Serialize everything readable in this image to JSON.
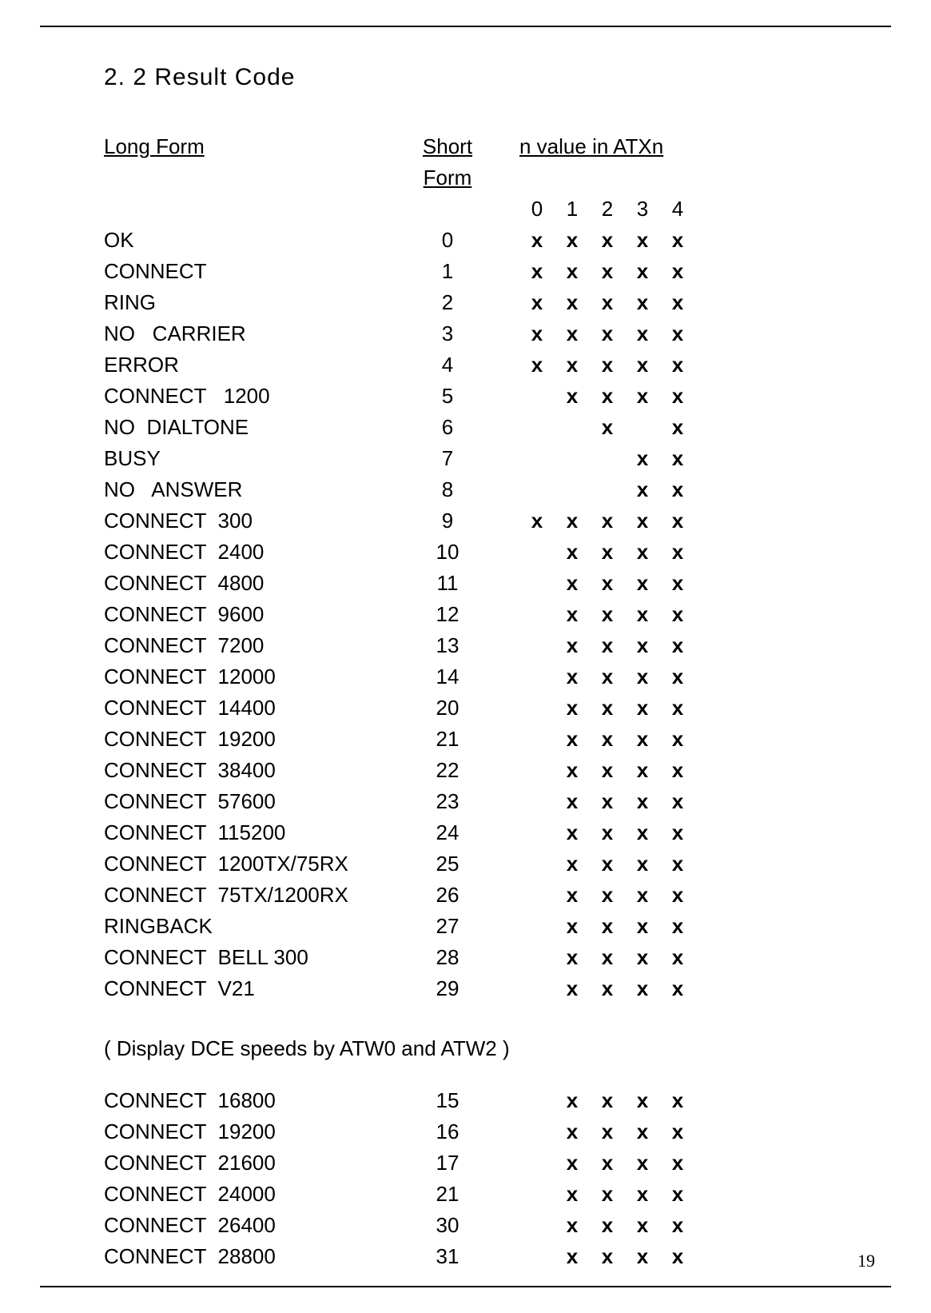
{
  "page_number": "19",
  "section_title": "2. 2  Result Code",
  "headers": {
    "long": "Long Form",
    "short": "Short Form",
    "n": "n value in ATXn",
    "cols": [
      "0",
      "1",
      "2",
      "3",
      "4"
    ]
  },
  "rows1": [
    {
      "long": "OK",
      "short": "0",
      "x": [
        "x",
        "x",
        "x",
        "x",
        "x"
      ]
    },
    {
      "long": "CONNECT",
      "short": "1",
      "x": [
        "x",
        "x",
        "x",
        "x",
        "x"
      ]
    },
    {
      "long": "RING",
      "short": "2",
      "x": [
        "x",
        "x",
        "x",
        "x",
        "x"
      ]
    },
    {
      "long": "NO   CARRIER",
      "short": "3",
      "x": [
        "x",
        "x",
        "x",
        "x",
        "x"
      ]
    },
    {
      "long": "ERROR",
      "short": "4",
      "x": [
        "x",
        "x",
        "x",
        "x",
        "x"
      ]
    },
    {
      "long": "CONNECT   1200",
      "short": "5",
      "x": [
        "",
        "x",
        "x",
        "x",
        "x"
      ]
    },
    {
      "long": "NO  DIALTONE",
      "short": "6",
      "x": [
        "",
        "",
        "x",
        "",
        "x"
      ]
    },
    {
      "long": "BUSY",
      "short": "7",
      "x": [
        "",
        "",
        "",
        "x",
        "x"
      ]
    },
    {
      "long": "NO   ANSWER",
      "short": "8",
      "x": [
        "",
        "",
        "",
        "x",
        "x"
      ]
    },
    {
      "long": "CONNECT  300",
      "short": "9",
      "x": [
        "x",
        "x",
        "x",
        "x",
        "x"
      ]
    },
    {
      "long": "CONNECT  2400",
      "short": "10",
      "x": [
        "",
        "x",
        "x",
        "x",
        "x"
      ]
    },
    {
      "long": "CONNECT  4800",
      "short": "11",
      "x": [
        "",
        "x",
        "x",
        "x",
        "x"
      ]
    },
    {
      "long": "CONNECT  9600",
      "short": "12",
      "x": [
        "",
        "x",
        "x",
        "x",
        "x"
      ]
    },
    {
      "long": "CONNECT  7200",
      "short": "13",
      "x": [
        "",
        "x",
        "x",
        "x",
        "x"
      ]
    },
    {
      "long": "CONNECT  12000",
      "short": "14",
      "x": [
        "",
        "x",
        "x",
        "x",
        "x"
      ]
    },
    {
      "long": "CONNECT  14400",
      "short": "20",
      "x": [
        "",
        "x",
        "x",
        "x",
        "x"
      ]
    },
    {
      "long": "CONNECT  19200",
      "short": "21",
      "x": [
        "",
        "x",
        "x",
        "x",
        "x"
      ]
    },
    {
      "long": "CONNECT  38400",
      "short": "22",
      "x": [
        "",
        "x",
        "x",
        "x",
        "x"
      ]
    },
    {
      "long": "CONNECT  57600",
      "short": "23",
      "x": [
        "",
        "x",
        "x",
        "x",
        "x"
      ]
    },
    {
      "long": "CONNECT  115200",
      "short": "24",
      "x": [
        "",
        "x",
        "x",
        "x",
        "x"
      ]
    },
    {
      "long": "CONNECT  1200TX/75RX",
      "short": "25",
      "x": [
        "",
        "x",
        "x",
        "x",
        "x"
      ]
    },
    {
      "long": "CONNECT  75TX/1200RX",
      "short": "26",
      "x": [
        "",
        "x",
        "x",
        "x",
        "x"
      ]
    },
    {
      "long": "RINGBACK",
      "short": "27",
      "x": [
        "",
        "x",
        "x",
        "x",
        "x"
      ]
    },
    {
      "long": "CONNECT  BELL 300",
      "short": "28",
      "x": [
        "",
        "x",
        "x",
        "x",
        "x"
      ]
    },
    {
      "long": "CONNECT  V21",
      "short": "29",
      "x": [
        "",
        "x",
        "x",
        "x",
        "x"
      ]
    }
  ],
  "note": "( Display DCE speeds by ATW0 and ATW2 )",
  "rows2": [
    {
      "long": "CONNECT  16800",
      "short": "15",
      "x": [
        "",
        "x",
        "x",
        "x",
        "x"
      ]
    },
    {
      "long": "CONNECT  19200",
      "short": "16",
      "x": [
        "",
        "x",
        "x",
        "x",
        "x"
      ]
    },
    {
      "long": "CONNECT  21600",
      "short": "17",
      "x": [
        "",
        "x",
        "x",
        "x",
        "x"
      ]
    },
    {
      "long": "CONNECT  24000",
      "short": "21",
      "x": [
        "",
        "x",
        "x",
        "x",
        "x"
      ]
    },
    {
      "long": "CONNECT  26400",
      "short": "30",
      "x": [
        "",
        "x",
        "x",
        "x",
        "x"
      ]
    },
    {
      "long": "CONNECT  28800",
      "short": "31",
      "x": [
        "",
        "x",
        "x",
        "x",
        "x"
      ]
    }
  ]
}
